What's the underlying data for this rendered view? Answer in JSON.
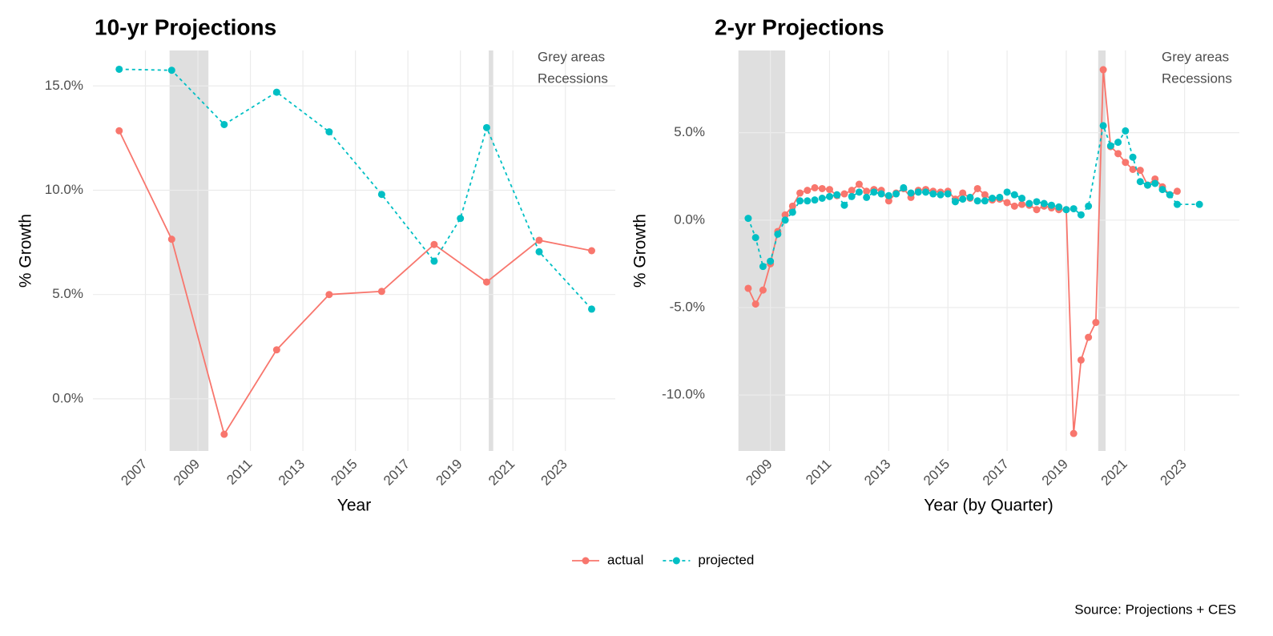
{
  "chart_data": [
    {
      "type": "line",
      "title": "10-yr Projections",
      "x_label": "Year",
      "y_label": "% Growth",
      "xlim": [
        2005.0,
        2024.9
      ],
      "xticks": [
        2007,
        2009,
        2011,
        2013,
        2015,
        2017,
        2019,
        2021,
        2023
      ],
      "ylim": [
        -2.5,
        16.7
      ],
      "yticks": [
        {
          "value": 0,
          "label": "0.0%"
        },
        {
          "value": 5,
          "label": "5.0%"
        },
        {
          "value": 10,
          "label": "10.0%"
        },
        {
          "value": 15,
          "label": "15.0%"
        }
      ],
      "grid": true,
      "recessions": [
        [
          2007.92,
          2009.4
        ],
        [
          2020.08,
          2020.25
        ]
      ],
      "annotation": [
        "Grey areas",
        "Recessions"
      ],
      "series": [
        {
          "name": "actual",
          "color": "#F8766D",
          "dash": false,
          "x": [
            2006,
            2008,
            2010,
            2012,
            2014,
            2016,
            2018,
            2020,
            2022,
            2024
          ],
          "values": [
            12.85,
            7.65,
            -1.7,
            2.35,
            5.0,
            5.15,
            7.4,
            5.6,
            7.6,
            7.1
          ]
        },
        {
          "name": "projected",
          "color": "#00BFC4",
          "dash": true,
          "x": [
            2006,
            2008,
            2010,
            2012,
            2014,
            2016,
            2018,
            2019,
            2020,
            2022,
            2024
          ],
          "values": [
            15.8,
            15.75,
            13.15,
            14.7,
            12.8,
            9.8,
            6.6,
            8.65,
            13.0,
            7.05,
            4.3
          ]
        }
      ]
    },
    {
      "type": "line",
      "title": "2-yr Projections",
      "x_label": "Year (by Quarter)",
      "y_label": "% Growth",
      "xlim": [
        2007.9,
        2024.85
      ],
      "xticks": [
        2009,
        2011,
        2013,
        2015,
        2017,
        2019,
        2021,
        2023
      ],
      "ylim": [
        -13.2,
        9.7
      ],
      "yticks": [
        {
          "value": -10,
          "label": "-10.0%"
        },
        {
          "value": -5,
          "label": "-5.0%"
        },
        {
          "value": 0,
          "label": "0.0%"
        },
        {
          "value": 5,
          "label": "5.0%"
        }
      ],
      "grid": true,
      "recessions": [
        [
          2007.92,
          2009.5
        ],
        [
          2020.08,
          2020.33
        ]
      ],
      "annotation": [
        "Grey areas",
        "Recessions"
      ],
      "series": [
        {
          "name": "actual",
          "color": "#F8766D",
          "dash": false,
          "x": [
            2008.25,
            2008.5,
            2008.75,
            2009.0,
            2009.25,
            2009.5,
            2009.75,
            2010.0,
            2010.25,
            2010.5,
            2010.75,
            2011.0,
            2011.25,
            2011.5,
            2011.75,
            2012.0,
            2012.25,
            2012.5,
            2012.75,
            2013.0,
            2013.25,
            2013.5,
            2013.75,
            2014.0,
            2014.25,
            2014.5,
            2014.75,
            2015.0,
            2015.25,
            2015.5,
            2015.75,
            2016.0,
            2016.25,
            2016.5,
            2016.75,
            2017.0,
            2017.25,
            2017.5,
            2017.75,
            2018.0,
            2018.25,
            2018.5,
            2018.75,
            2019.0,
            2019.25,
            2019.5,
            2019.75,
            2020.0,
            2020.25,
            2020.5,
            2020.75,
            2021.0,
            2021.25,
            2021.5,
            2021.75,
            2022.0,
            2022.25,
            2022.5,
            2022.75
          ],
          "values": [
            -3.9,
            -4.8,
            -4.0,
            -2.5,
            -0.65,
            0.3,
            0.8,
            1.55,
            1.7,
            1.85,
            1.8,
            1.75,
            1.4,
            1.5,
            1.7,
            2.05,
            1.65,
            1.75,
            1.7,
            1.1,
            1.55,
            1.8,
            1.3,
            1.7,
            1.75,
            1.65,
            1.6,
            1.65,
            1.2,
            1.55,
            1.25,
            1.8,
            1.45,
            1.15,
            1.2,
            1.0,
            0.8,
            0.9,
            0.85,
            0.6,
            0.8,
            0.7,
            0.6,
            0.6,
            -12.2,
            -8.0,
            -6.7,
            -5.85,
            8.6,
            4.2,
            3.8,
            3.3,
            2.9,
            2.85,
            2.0,
            2.35,
            1.9,
            1.45,
            1.65
          ]
        },
        {
          "name": "projected",
          "color": "#00BFC4",
          "dash": true,
          "x": [
            2008.25,
            2008.5,
            2008.75,
            2009.0,
            2009.25,
            2009.5,
            2009.75,
            2010.0,
            2010.25,
            2010.5,
            2010.75,
            2011.0,
            2011.25,
            2011.5,
            2011.75,
            2012.0,
            2012.25,
            2012.5,
            2012.75,
            2013.0,
            2013.25,
            2013.5,
            2013.75,
            2014.0,
            2014.25,
            2014.5,
            2014.75,
            2015.0,
            2015.25,
            2015.5,
            2015.75,
            2016.0,
            2016.25,
            2016.5,
            2016.75,
            2017.0,
            2017.25,
            2017.5,
            2017.75,
            2018.0,
            2018.25,
            2018.5,
            2018.75,
            2019.0,
            2019.25,
            2019.5,
            2019.75,
            2020.25,
            2020.5,
            2020.75,
            2021.0,
            2021.25,
            2021.5,
            2021.75,
            2022.0,
            2022.25,
            2022.5,
            2022.75,
            2023.5
          ],
          "values": [
            0.1,
            -1.0,
            -2.65,
            -2.35,
            -0.8,
            0.0,
            0.45,
            1.1,
            1.1,
            1.15,
            1.25,
            1.35,
            1.45,
            0.85,
            1.35,
            1.6,
            1.3,
            1.6,
            1.5,
            1.4,
            1.5,
            1.85,
            1.55,
            1.6,
            1.6,
            1.5,
            1.45,
            1.5,
            1.05,
            1.2,
            1.3,
            1.1,
            1.1,
            1.25,
            1.3,
            1.6,
            1.45,
            1.25,
            0.95,
            1.05,
            0.95,
            0.85,
            0.75,
            0.6,
            0.65,
            0.3,
            0.8,
            5.4,
            4.25,
            4.45,
            5.1,
            3.6,
            2.2,
            2.0,
            2.1,
            1.75,
            1.45,
            0.9,
            0.9
          ]
        }
      ]
    }
  ],
  "legend_position": "bottom",
  "source": "Source: Projections + CES"
}
